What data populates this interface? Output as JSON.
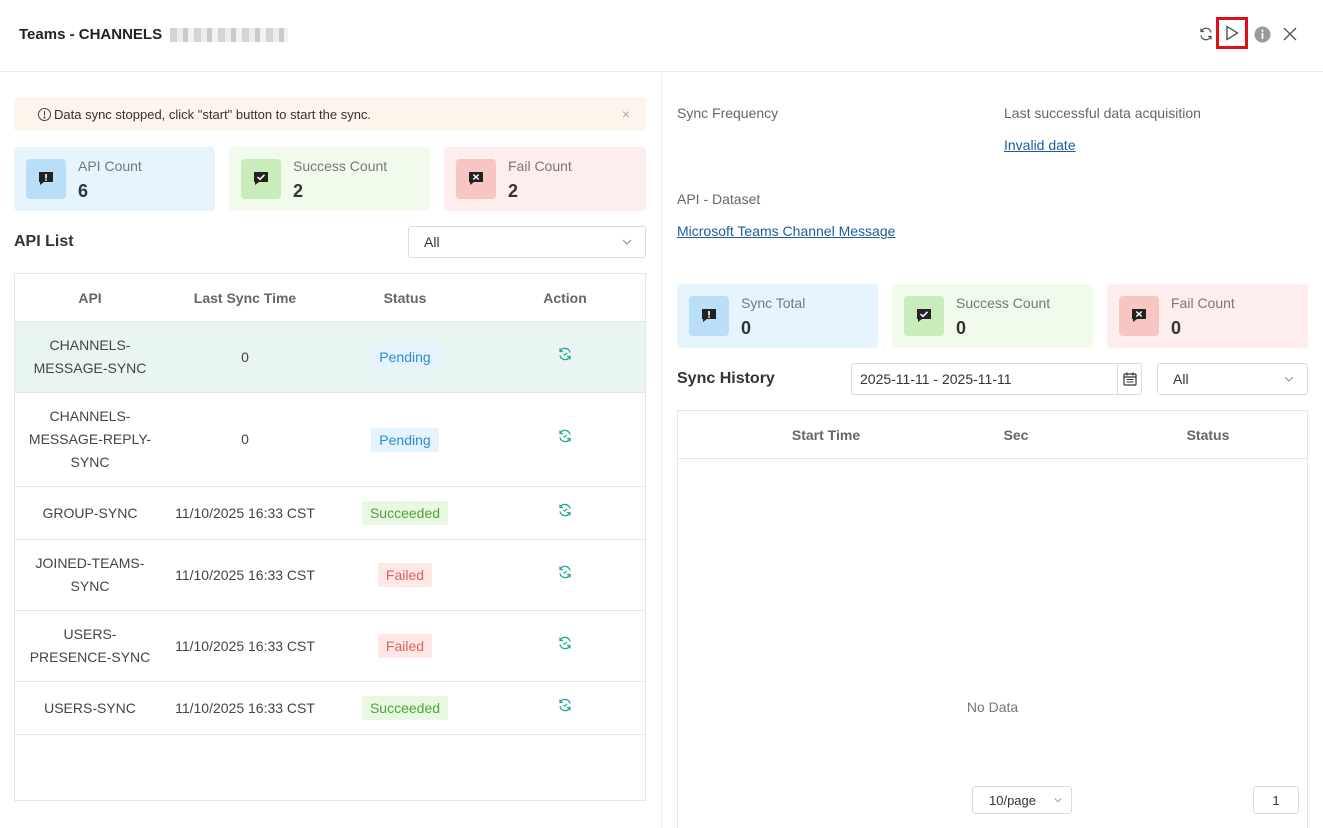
{
  "header": {
    "title": "Teams - CHANNELS",
    "icons": [
      "refresh-icon",
      "play-icon",
      "info-icon",
      "close-icon"
    ]
  },
  "alert": {
    "message": "Data sync stopped, click \"start\" button to start the sync.",
    "close": "×"
  },
  "left_stats": [
    {
      "label": "API Count",
      "value": "6",
      "icon": "exclamation-icon"
    },
    {
      "label": "Success Count",
      "value": "2",
      "icon": "check-icon"
    },
    {
      "label": "Fail Count",
      "value": "2",
      "icon": "x-icon"
    }
  ],
  "api_list": {
    "title": "API List",
    "filter_value": "All",
    "columns": [
      "API",
      "Last Sync Time",
      "Status",
      "Action"
    ],
    "rows": [
      {
        "api": "CHANNELS-MESSAGE-SYNC",
        "time": "0",
        "status": "Pending"
      },
      {
        "api": "CHANNELS-MESSAGE-REPLY-SYNC",
        "time": "0",
        "status": "Pending"
      },
      {
        "api": "GROUP-SYNC",
        "time": "11/10/2025 16:33 CST",
        "status": "Succeeded"
      },
      {
        "api": "JOINED-TEAMS-SYNC",
        "time": "11/10/2025 16:33 CST",
        "status": "Failed"
      },
      {
        "api": "USERS-PRESENCE-SYNC",
        "time": "11/10/2025 16:33 CST",
        "status": "Failed"
      },
      {
        "api": "USERS-SYNC",
        "time": "11/10/2025 16:33 CST",
        "status": "Succeeded"
      }
    ]
  },
  "details": {
    "sync_frequency_label": "Sync Frequency",
    "last_acq_label": "Last successful data acquisition",
    "last_acq_value": "Invalid date",
    "dataset_label": "API - Dataset",
    "dataset_value": "Microsoft Teams Channel Message"
  },
  "right_stats": [
    {
      "label": "Sync Total",
      "value": "0",
      "icon": "exclamation-icon"
    },
    {
      "label": "Success Count",
      "value": "0",
      "icon": "check-icon"
    },
    {
      "label": "Fail Count",
      "value": "0",
      "icon": "x-icon"
    }
  ],
  "sync_history": {
    "title": "Sync History",
    "date_range": "2025-11-11 - 2025-11-11",
    "filter_value": "All",
    "columns": [
      "Start Time",
      "Sec",
      "Status"
    ],
    "empty_text": "No Data",
    "page_size": "10/page",
    "page": "1"
  },
  "colors": {
    "accent_teal": "#26a69a",
    "play_highlight": "#e0101a",
    "link": "#1d5c99"
  }
}
